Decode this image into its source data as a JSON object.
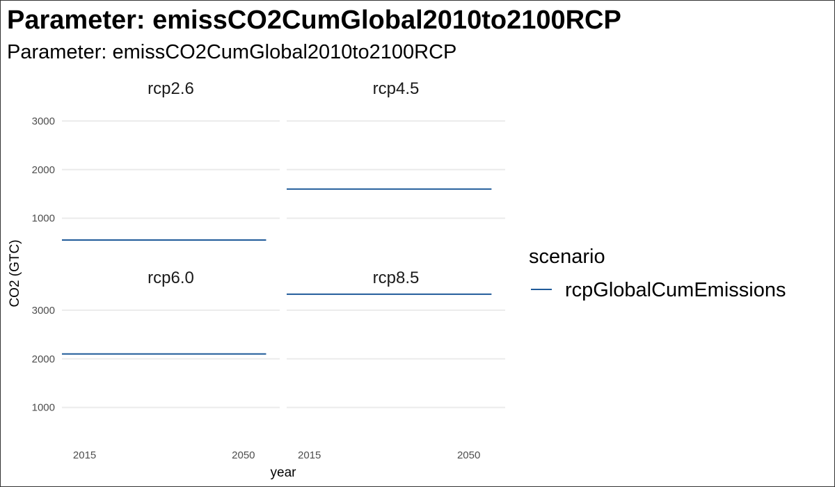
{
  "title": "Parameter: emissCO2CumGlobal2010to2100RCP",
  "subtitle": "Parameter: emissCO2CumGlobal2010to2100RCP",
  "colors": {
    "series": "#1f5a99",
    "grid": "#ebebeb"
  },
  "chart_data": {
    "type": "line",
    "facet_layout": "2x2 grid",
    "xlabel": "year",
    "ylabel": "CO2 (GTC)",
    "xlim": [
      2010,
      2058
    ],
    "x_ticks": [
      2015,
      2050
    ],
    "ylim": [
      350,
      3400
    ],
    "y_ticks": [
      1000,
      2000,
      3000
    ],
    "grid": true,
    "legend_position": "right",
    "legend": {
      "title": "scenario",
      "entries": [
        "rcpGlobalCumEmissions"
      ]
    },
    "panels": [
      {
        "label": "rcp2.6",
        "series": [
          {
            "name": "rcpGlobalCumEmissions",
            "x": [
              2010,
              2055
            ],
            "y": [
              550,
              550
            ]
          }
        ]
      },
      {
        "label": "rcp4.5",
        "series": [
          {
            "name": "rcpGlobalCumEmissions",
            "x": [
              2010,
              2055
            ],
            "y": [
              1600,
              1600
            ]
          }
        ]
      },
      {
        "label": "rcp6.0",
        "series": [
          {
            "name": "rcpGlobalCumEmissions",
            "x": [
              2010,
              2055
            ],
            "y": [
              2100,
              2100
            ]
          }
        ]
      },
      {
        "label": "rcp8.5",
        "series": [
          {
            "name": "rcpGlobalCumEmissions",
            "x": [
              2010,
              2055
            ],
            "y": [
              3330,
              3330
            ]
          }
        ]
      }
    ]
  }
}
